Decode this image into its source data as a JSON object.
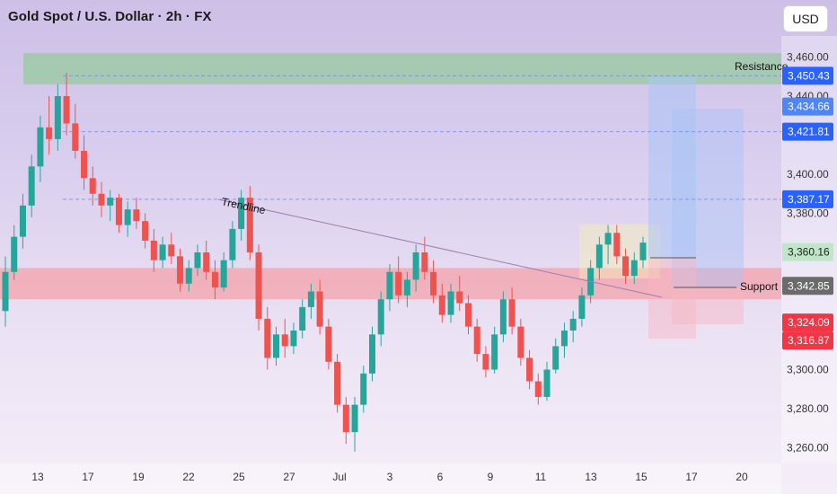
{
  "header": {
    "title": "Gold Spot / U.S. Dollar · 2h · FX",
    "currency_button": "USD"
  },
  "colors": {
    "up": "#26a69a",
    "down": "#ef5350",
    "resistance_zone": "#9fc9a8",
    "support_zone": "#f3a3ab",
    "trendline": "#9a7fb0",
    "badge_blue": "#2962ff",
    "badge_green": "#bfe6c6",
    "badge_gray": "#6b6b6b",
    "badge_red": "#f23645"
  },
  "chart_data": {
    "type": "candlestick",
    "title": "Gold Spot / U.S. Dollar · 2h · FX",
    "ylim": [
      3252,
      3468
    ],
    "price_ticks": [
      "3,460.00",
      "3,440.00",
      "3,400.00",
      "3,380.00",
      "3,300.00",
      "3,280.00",
      "3,260.00"
    ],
    "price_tick_values": [
      3460,
      3440,
      3400,
      3380,
      3300,
      3280,
      3260
    ],
    "date_ticks": [
      "13",
      "17",
      "19",
      "22",
      "25",
      "27",
      "Jul",
      "3",
      "6",
      "9",
      "11",
      "13",
      "15",
      "17",
      "20"
    ],
    "series": [
      {
        "values": [
          [
            3330,
            3358,
            3322,
            3350
          ],
          [
            3350,
            3374,
            3346,
            3368
          ],
          [
            3368,
            3390,
            3362,
            3384
          ],
          [
            3384,
            3410,
            3378,
            3404
          ],
          [
            3404,
            3430,
            3396,
            3424
          ],
          [
            3424,
            3440,
            3410,
            3418
          ],
          [
            3418,
            3446,
            3412,
            3440
          ],
          [
            3440,
            3452,
            3420,
            3426
          ],
          [
            3426,
            3436,
            3408,
            3412
          ],
          [
            3412,
            3420,
            3392,
            3398
          ],
          [
            3398,
            3404,
            3384,
            3390
          ],
          [
            3390,
            3396,
            3378,
            3384
          ],
          [
            3384,
            3392,
            3376,
            3388
          ],
          [
            3388,
            3390,
            3370,
            3374
          ],
          [
            3374,
            3386,
            3368,
            3382
          ],
          [
            3382,
            3388,
            3372,
            3376
          ],
          [
            3376,
            3380,
            3362,
            3366
          ],
          [
            3366,
            3372,
            3350,
            3356
          ],
          [
            3356,
            3368,
            3352,
            3364
          ],
          [
            3364,
            3370,
            3354,
            3358
          ],
          [
            3358,
            3362,
            3340,
            3344
          ],
          [
            3344,
            3356,
            3340,
            3352
          ],
          [
            3352,
            3364,
            3348,
            3360
          ],
          [
            3360,
            3366,
            3346,
            3350
          ],
          [
            3350,
            3356,
            3336,
            3342
          ],
          [
            3342,
            3360,
            3340,
            3356
          ],
          [
            3356,
            3376,
            3352,
            3372
          ],
          [
            3372,
            3392,
            3366,
            3388
          ],
          [
            3388,
            3394,
            3356,
            3360
          ],
          [
            3360,
            3364,
            3320,
            3326
          ],
          [
            3326,
            3332,
            3300,
            3306
          ],
          [
            3306,
            3322,
            3302,
            3318
          ],
          [
            3318,
            3326,
            3306,
            3312
          ],
          [
            3312,
            3324,
            3308,
            3320
          ],
          [
            3320,
            3336,
            3316,
            3332
          ],
          [
            3332,
            3344,
            3326,
            3340
          ],
          [
            3340,
            3346,
            3318,
            3322
          ],
          [
            3322,
            3326,
            3300,
            3304
          ],
          [
            3304,
            3308,
            3278,
            3282
          ],
          [
            3282,
            3286,
            3262,
            3268
          ],
          [
            3268,
            3286,
            3258,
            3282
          ],
          [
            3282,
            3302,
            3278,
            3298
          ],
          [
            3298,
            3322,
            3294,
            3318
          ],
          [
            3318,
            3340,
            3312,
            3336
          ],
          [
            3336,
            3354,
            3330,
            3350
          ],
          [
            3350,
            3358,
            3334,
            3338
          ],
          [
            3338,
            3350,
            3332,
            3346
          ],
          [
            3346,
            3364,
            3340,
            3360
          ],
          [
            3360,
            3368,
            3346,
            3350
          ],
          [
            3350,
            3356,
            3334,
            3338
          ],
          [
            3338,
            3344,
            3324,
            3328
          ],
          [
            3328,
            3344,
            3324,
            3340
          ],
          [
            3340,
            3348,
            3330,
            3334
          ],
          [
            3334,
            3338,
            3318,
            3322
          ],
          [
            3322,
            3326,
            3304,
            3308
          ],
          [
            3308,
            3312,
            3296,
            3300
          ],
          [
            3300,
            3322,
            3298,
            3318
          ],
          [
            3318,
            3340,
            3314,
            3336
          ],
          [
            3336,
            3342,
            3318,
            3322
          ],
          [
            3322,
            3326,
            3302,
            3306
          ],
          [
            3306,
            3310,
            3290,
            3294
          ],
          [
            3294,
            3298,
            3282,
            3286
          ],
          [
            3286,
            3304,
            3284,
            3300
          ],
          [
            3300,
            3316,
            3298,
            3312
          ],
          [
            3312,
            3324,
            3306,
            3320
          ],
          [
            3320,
            3330,
            3314,
            3326
          ],
          [
            3326,
            3342,
            3322,
            3338
          ],
          [
            3338,
            3356,
            3334,
            3352
          ],
          [
            3352,
            3368,
            3346,
            3364
          ],
          [
            3364,
            3374,
            3354,
            3370
          ],
          [
            3370,
            3374,
            3354,
            3358
          ],
          [
            3358,
            3362,
            3344,
            3348
          ],
          [
            3348,
            3360,
            3344,
            3356
          ],
          [
            3356,
            3368,
            3352,
            3365
          ]
        ]
      }
    ]
  },
  "price_levels": [
    {
      "label": "3,450.43",
      "value": 3450.43,
      "style": "blue"
    },
    {
      "label": "3,434.66",
      "value": 3434.66,
      "style": "blue_light"
    },
    {
      "label": "3,421.81",
      "value": 3421.81,
      "style": "blue"
    },
    {
      "label": "3,387.17",
      "value": 3387.17,
      "style": "blue"
    },
    {
      "label": "3,360.16",
      "value": 3360.16,
      "style": "green"
    },
    {
      "label": "3,342.85",
      "value": 3342.85,
      "style": "gray"
    },
    {
      "label": "3,324.09",
      "value": 3324.09,
      "style": "red"
    },
    {
      "label": "3,316.87",
      "value": 3316.87,
      "style": "red"
    }
  ],
  "annotations": {
    "resistance_label": "Resistance",
    "support_label": "Support",
    "trendline_label": "Trendline",
    "resistance_zone": [
      3446,
      3462
    ],
    "support_zone": [
      3336,
      3352
    ]
  }
}
